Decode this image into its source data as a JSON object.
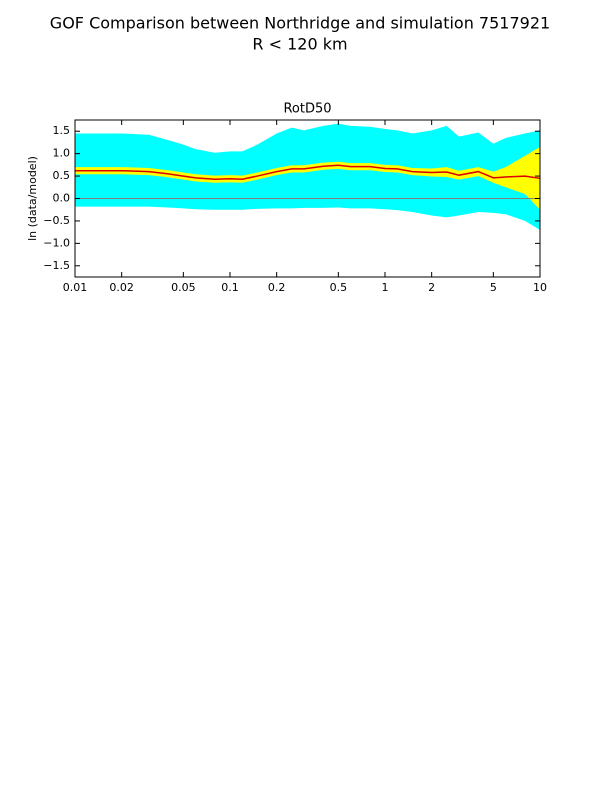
{
  "chart_data": {
    "type": "line",
    "title": "GOF Comparison between Northridge and simulation 7517921",
    "subtitle": "R < 120 km",
    "axes_title": "RotD50",
    "ylabel": "ln (data/model)",
    "x_scale": "log",
    "x": [
      0.01,
      0.015,
      0.02,
      0.03,
      0.04,
      0.05,
      0.06,
      0.08,
      0.1,
      0.12,
      0.15,
      0.2,
      0.25,
      0.3,
      0.4,
      0.5,
      0.6,
      0.8,
      1,
      1.2,
      1.5,
      2,
      2.5,
      3,
      4,
      5,
      6,
      8,
      10
    ],
    "xlim": [
      0.01,
      10
    ],
    "xticks": [
      0.01,
      0.02,
      0.05,
      0.1,
      0.2,
      0.5,
      1,
      2,
      5,
      10
    ],
    "ylim": [
      -1.75,
      1.75
    ],
    "yticks": [
      {
        "value": 1.5,
        "label": "1.5"
      },
      {
        "value": 1.0,
        "label": "1.0"
      },
      {
        "value": 0.5,
        "label": "0.5"
      },
      {
        "value": 0.0,
        "label": "0.0"
      },
      {
        "value": -0.5,
        "label": "−0.5"
      },
      {
        "value": -1.0,
        "label": "−1.0"
      },
      {
        "value": -1.5,
        "label": "−1.5"
      }
    ],
    "hline": 0,
    "hline_color": "#808080",
    "bands": [
      {
        "color": "#00ffff",
        "upper": [
          1.45,
          1.45,
          1.45,
          1.42,
          1.3,
          1.2,
          1.1,
          1.02,
          1.05,
          1.05,
          1.2,
          1.45,
          1.58,
          1.52,
          1.62,
          1.67,
          1.62,
          1.6,
          1.55,
          1.52,
          1.45,
          1.52,
          1.62,
          1.38,
          1.47,
          1.22,
          1.35,
          1.45,
          1.52
        ],
        "lower": [
          -0.18,
          -0.18,
          -0.18,
          -0.18,
          -0.2,
          -0.22,
          -0.24,
          -0.25,
          -0.25,
          -0.25,
          -0.23,
          -0.22,
          -0.22,
          -0.21,
          -0.21,
          -0.2,
          -0.22,
          -0.22,
          -0.24,
          -0.26,
          -0.3,
          -0.38,
          -0.42,
          -0.38,
          -0.3,
          -0.32,
          -0.35,
          -0.5,
          -0.7
        ]
      },
      {
        "color": "#ffff00",
        "upper": [
          0.7,
          0.7,
          0.7,
          0.68,
          0.63,
          0.58,
          0.54,
          0.51,
          0.52,
          0.51,
          0.58,
          0.68,
          0.74,
          0.74,
          0.8,
          0.82,
          0.79,
          0.79,
          0.75,
          0.74,
          0.68,
          0.67,
          0.7,
          0.62,
          0.7,
          0.6,
          0.7,
          0.95,
          1.15
        ],
        "lower": [
          0.54,
          0.54,
          0.54,
          0.52,
          0.47,
          0.42,
          0.38,
          0.35,
          0.36,
          0.35,
          0.42,
          0.52,
          0.58,
          0.58,
          0.64,
          0.66,
          0.63,
          0.63,
          0.59,
          0.58,
          0.52,
          0.49,
          0.48,
          0.42,
          0.5,
          0.35,
          0.25,
          0.1,
          -0.25
        ]
      }
    ],
    "series": [
      {
        "color": "#dd0000",
        "values": [
          0.62,
          0.62,
          0.62,
          0.6,
          0.55,
          0.5,
          0.46,
          0.43,
          0.44,
          0.43,
          0.5,
          0.6,
          0.66,
          0.66,
          0.72,
          0.74,
          0.71,
          0.71,
          0.67,
          0.66,
          0.6,
          0.58,
          0.59,
          0.52,
          0.6,
          0.46,
          0.48,
          0.5,
          0.45
        ]
      }
    ]
  }
}
